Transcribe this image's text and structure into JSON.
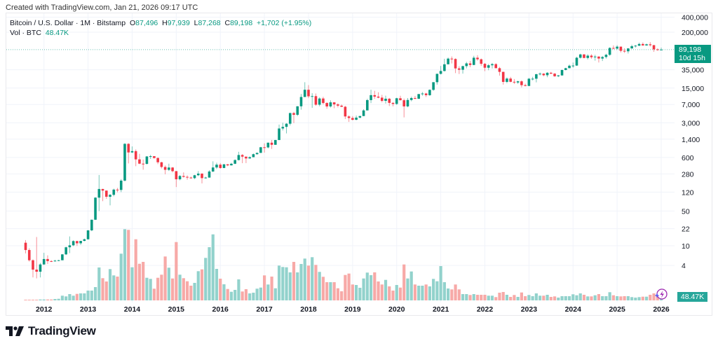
{
  "header": {
    "created": "Created with TradingView.com, Jan 21, 2026 09:17 UTC"
  },
  "legend": {
    "symbol": "Bitcoin / U.S. Dollar · 1M · Bitstamp",
    "o_label": "O",
    "o": "87,496",
    "h_label": "H",
    "h": "97,939",
    "l_label": "L",
    "l": "87,268",
    "c_label": "C",
    "c": "89,198",
    "change": "+1,702 (+1.95%)",
    "vol_label": "Vol · BTC",
    "vol": "48.47K"
  },
  "price_label": {
    "price": "89,198",
    "countdown": "10d 15h"
  },
  "volume_label": "48.47K",
  "footer": {
    "brand": "TradingView"
  },
  "colors": {
    "up": "#089981",
    "down": "#f23645",
    "vol_up": "#92d2cc",
    "vol_down": "#f7a9a7",
    "last_price_line": "#089981",
    "alert_icon": "#9c27b0"
  },
  "icons": [
    "tradingview-logo-icon",
    "lightning-alert-icon"
  ],
  "chart_data": {
    "type": "candlestick",
    "title": "Bitcoin / U.S. Dollar · 1M · Bitstamp",
    "y_scale": "log",
    "ylim": [
      2,
      420000
    ],
    "y_ticks": [
      400000,
      200000,
      35000,
      15000,
      7000,
      3000,
      1400,
      600,
      280,
      120,
      50,
      22,
      10,
      4
    ],
    "y_tick_labels": [
      "400,000",
      "200,000",
      "35,000",
      "15,000",
      "7,000",
      "3,000",
      "1,400",
      "600",
      "280",
      "120",
      "50",
      "22",
      "10",
      "4"
    ],
    "x_ticks": [
      "2012",
      "2013",
      "2014",
      "2015",
      "2016",
      "2017",
      "2018",
      "2019",
      "2020",
      "2021",
      "2022",
      "2023",
      "2024",
      "2025",
      "2026"
    ],
    "grid": true,
    "last_price": 89198,
    "volume_unit": "K BTC",
    "candles_fields": [
      "month",
      "open",
      "high",
      "low",
      "close",
      "volume_k"
    ],
    "candles": [
      [
        "2011-08",
        11.5,
        13,
        7,
        8.2,
        7
      ],
      [
        "2011-09",
        8.2,
        8.9,
        4.8,
        5.1,
        7
      ],
      [
        "2011-10",
        5.1,
        5.3,
        2.3,
        3.3,
        7
      ],
      [
        "2011-11",
        3.3,
        15,
        2.2,
        3.0,
        7
      ],
      [
        "2011-12",
        3.0,
        4.5,
        2.3,
        4.2,
        13
      ],
      [
        "2012-01",
        4.2,
        7.2,
        4.1,
        5.4,
        13
      ],
      [
        "2012-02",
        5.4,
        6.4,
        4.3,
        4.9,
        13
      ],
      [
        "2012-03",
        4.9,
        5.1,
        4.7,
        4.85,
        13
      ],
      [
        "2012-04",
        4.85,
        5.2,
        4.8,
        5.0,
        20
      ],
      [
        "2012-05",
        5.0,
        5.2,
        4.9,
        5.1,
        23
      ],
      [
        "2012-06",
        5.1,
        6.8,
        5.1,
        6.7,
        67
      ],
      [
        "2012-07",
        6.7,
        9.6,
        6.5,
        9.3,
        57
      ],
      [
        "2012-08",
        9.3,
        15.4,
        7.1,
        10.2,
        90
      ],
      [
        "2012-09",
        10.2,
        12.9,
        9.8,
        12.4,
        67
      ],
      [
        "2012-10",
        12.4,
        12.6,
        9.9,
        11.2,
        93
      ],
      [
        "2012-11",
        11.2,
        12.5,
        10.4,
        12.5,
        100
      ],
      [
        "2012-12",
        12.5,
        13.9,
        12.3,
        13.5,
        100
      ],
      [
        "2013-01",
        13.5,
        20.6,
        13.3,
        20.4,
        140
      ],
      [
        "2013-02",
        20.4,
        33.6,
        19.6,
        33.4,
        140
      ],
      [
        "2013-03",
        33.4,
        95,
        33.1,
        93,
        190
      ],
      [
        "2013-04",
        93,
        266,
        50,
        139,
        470
      ],
      [
        "2013-05",
        139,
        140,
        79,
        129,
        317
      ],
      [
        "2013-06",
        129,
        130,
        88,
        97,
        270
      ],
      [
        "2013-07",
        97,
        110,
        65,
        106,
        447
      ],
      [
        "2013-08",
        106,
        141,
        99,
        135,
        357
      ],
      [
        "2013-09",
        135,
        146,
        119,
        133,
        340
      ],
      [
        "2013-10",
        133,
        220,
        120,
        205,
        667
      ],
      [
        "2013-11",
        205,
        1163,
        197,
        1128,
        1017
      ],
      [
        "2013-12",
        1128,
        1163,
        455,
        757,
        1007
      ],
      [
        "2014-01",
        757,
        1000,
        740,
        805,
        473
      ],
      [
        "2014-02",
        805,
        870,
        400,
        549,
        873
      ],
      [
        "2014-03",
        549,
        710,
        440,
        450,
        523
      ],
      [
        "2014-04",
        450,
        545,
        340,
        446,
        550
      ],
      [
        "2014-05",
        446,
        640,
        432,
        628,
        323
      ],
      [
        "2014-06",
        628,
        677,
        560,
        637,
        307
      ],
      [
        "2014-07",
        637,
        640,
        570,
        585,
        167
      ],
      [
        "2014-08",
        585,
        600,
        440,
        480,
        323
      ],
      [
        "2014-09",
        480,
        490,
        360,
        386,
        367
      ],
      [
        "2014-10",
        386,
        415,
        275,
        338,
        627
      ],
      [
        "2014-11",
        338,
        450,
        320,
        376,
        467
      ],
      [
        "2014-12",
        376,
        385,
        300,
        318,
        313
      ],
      [
        "2015-01",
        318,
        320,
        152,
        218,
        833
      ],
      [
        "2015-02",
        218,
        265,
        208,
        254,
        367
      ],
      [
        "2015-03",
        254,
        300,
        236,
        244,
        317
      ],
      [
        "2015-04",
        244,
        261,
        214,
        236,
        273
      ],
      [
        "2015-05",
        236,
        247,
        226,
        230,
        210
      ],
      [
        "2015-06",
        230,
        268,
        220,
        263,
        250
      ],
      [
        "2015-07",
        263,
        318,
        252,
        284,
        417
      ],
      [
        "2015-08",
        284,
        286,
        180,
        230,
        443
      ],
      [
        "2015-09",
        230,
        245,
        225,
        236,
        607
      ],
      [
        "2015-10",
        236,
        331,
        235,
        313,
        760
      ],
      [
        "2015-11",
        313,
        502,
        304,
        377,
        943
      ],
      [
        "2015-12",
        377,
        470,
        350,
        430,
        450
      ],
      [
        "2016-01",
        430,
        463,
        355,
        368,
        310
      ],
      [
        "2016-02",
        368,
        445,
        365,
        436,
        230
      ],
      [
        "2016-03",
        436,
        443,
        400,
        416,
        163
      ],
      [
        "2016-04",
        416,
        469,
        412,
        448,
        123
      ],
      [
        "2016-05",
        448,
        550,
        440,
        532,
        150
      ],
      [
        "2016-06",
        532,
        780,
        523,
        672,
        300
      ],
      [
        "2016-07",
        672,
        703,
        460,
        623,
        127
      ],
      [
        "2016-08",
        623,
        626,
        462,
        573,
        160
      ],
      [
        "2016-09",
        573,
        630,
        565,
        608,
        100
      ],
      [
        "2016-10",
        608,
        720,
        606,
        698,
        110
      ],
      [
        "2016-11",
        698,
        755,
        683,
        742,
        167
      ],
      [
        "2016-12",
        742,
        980,
        740,
        963,
        183
      ],
      [
        "2017-01",
        963,
        1153,
        750,
        955,
        357
      ],
      [
        "2017-02",
        955,
        1200,
        915,
        1190,
        227
      ],
      [
        "2017-03",
        1190,
        1350,
        890,
        1080,
        340
      ],
      [
        "2017-04",
        1080,
        1350,
        1075,
        1348,
        173
      ],
      [
        "2017-05",
        1348,
        2760,
        1340,
        2300,
        497
      ],
      [
        "2017-06",
        2300,
        3000,
        2100,
        2480,
        477
      ],
      [
        "2017-07",
        2480,
        2950,
        1830,
        2870,
        473
      ],
      [
        "2017-08",
        2870,
        4800,
        2650,
        4700,
        400
      ],
      [
        "2017-09",
        4700,
        4980,
        2950,
        4340,
        550
      ],
      [
        "2017-10",
        4340,
        6450,
        4100,
        6440,
        400
      ],
      [
        "2017-11",
        6440,
        11400,
        5500,
        9920,
        520
      ],
      [
        "2017-12",
        9920,
        19666,
        9900,
        13860,
        597
      ],
      [
        "2018-01",
        13860,
        17200,
        9400,
        10220,
        497
      ],
      [
        "2018-02",
        10220,
        11800,
        6000,
        10320,
        617
      ],
      [
        "2018-03",
        10320,
        11650,
        6600,
        6930,
        507
      ],
      [
        "2018-04",
        6930,
        9750,
        6430,
        9240,
        407
      ],
      [
        "2018-05",
        9240,
        9990,
        7040,
        7500,
        337
      ],
      [
        "2018-06",
        7500,
        7760,
        5750,
        6390,
        260
      ],
      [
        "2018-07",
        6390,
        8500,
        6070,
        7730,
        260
      ],
      [
        "2018-08",
        7730,
        7760,
        5880,
        7030,
        260
      ],
      [
        "2018-09",
        7030,
        7410,
        6120,
        6630,
        173
      ],
      [
        "2018-10",
        6630,
        7000,
        6200,
        6300,
        130
      ],
      [
        "2018-11",
        6300,
        6560,
        3560,
        4020,
        363
      ],
      [
        "2018-12",
        4020,
        4230,
        3120,
        3740,
        383
      ],
      [
        "2019-01",
        3740,
        4090,
        3350,
        3440,
        227
      ],
      [
        "2019-02",
        3440,
        4200,
        3380,
        3810,
        220
      ],
      [
        "2019-03",
        3810,
        4110,
        3670,
        4100,
        180
      ],
      [
        "2019-04",
        4100,
        5620,
        4070,
        5320,
        313
      ],
      [
        "2019-05",
        5320,
        9100,
        5330,
        8580,
        397
      ],
      [
        "2019-06",
        8580,
        13880,
        7480,
        10800,
        360
      ],
      [
        "2019-07",
        10800,
        13200,
        9100,
        10090,
        400
      ],
      [
        "2019-08",
        10090,
        12330,
        9340,
        9620,
        270
      ],
      [
        "2019-09",
        9620,
        10950,
        7730,
        8290,
        227
      ],
      [
        "2019-10",
        8290,
        10540,
        7300,
        9150,
        293
      ],
      [
        "2019-11",
        9150,
        9510,
        6520,
        7550,
        200
      ],
      [
        "2019-12",
        7550,
        7750,
        6410,
        7190,
        140
      ],
      [
        "2020-01",
        7190,
        9570,
        6860,
        9350,
        220
      ],
      [
        "2020-02",
        9350,
        10500,
        8460,
        8530,
        183
      ],
      [
        "2020-03",
        8530,
        9190,
        3850,
        6410,
        513
      ],
      [
        "2020-04",
        6410,
        9450,
        6150,
        8630,
        313
      ],
      [
        "2020-05",
        8630,
        10070,
        8110,
        9450,
        413
      ],
      [
        "2020-06",
        9450,
        10380,
        8910,
        9140,
        227
      ],
      [
        "2020-07",
        9140,
        11420,
        8990,
        11350,
        210
      ],
      [
        "2020-08",
        11350,
        12470,
        10540,
        11650,
        210
      ],
      [
        "2020-09",
        11650,
        12060,
        9880,
        10780,
        227
      ],
      [
        "2020-10",
        10780,
        14100,
        10430,
        13800,
        200
      ],
      [
        "2020-11",
        13800,
        19500,
        13200,
        19700,
        307
      ],
      [
        "2020-12",
        19700,
        29300,
        17600,
        28990,
        273
      ],
      [
        "2021-01",
        28990,
        41950,
        28130,
        33110,
        490
      ],
      [
        "2021-02",
        33110,
        58350,
        32300,
        45160,
        260
      ],
      [
        "2021-03",
        45160,
        61780,
        44950,
        58790,
        170
      ],
      [
        "2021-04",
        58790,
        64900,
        47000,
        57720,
        157
      ],
      [
        "2021-05",
        57720,
        59600,
        30000,
        37300,
        227
      ],
      [
        "2021-06",
        37300,
        41300,
        28800,
        35050,
        157
      ],
      [
        "2021-07",
        35050,
        42300,
        29300,
        41500,
        90
      ],
      [
        "2021-08",
        41500,
        50500,
        37300,
        47100,
        90
      ],
      [
        "2021-09",
        47100,
        52900,
        39600,
        43800,
        77
      ],
      [
        "2021-10",
        43800,
        67000,
        43300,
        61300,
        90
      ],
      [
        "2021-11",
        61300,
        69000,
        53250,
        57000,
        80
      ],
      [
        "2021-12",
        57000,
        59100,
        42000,
        46200,
        80
      ],
      [
        "2022-01",
        46200,
        47950,
        32900,
        38500,
        80
      ],
      [
        "2022-02",
        38500,
        45800,
        34300,
        43200,
        67
      ],
      [
        "2022-03",
        43200,
        48200,
        37200,
        45500,
        67
      ],
      [
        "2022-04",
        45500,
        47400,
        37600,
        37700,
        47
      ],
      [
        "2022-05",
        37700,
        40000,
        26700,
        31800,
        110
      ],
      [
        "2022-06",
        31800,
        31900,
        17600,
        19950,
        120
      ],
      [
        "2022-07",
        19950,
        24650,
        18800,
        23300,
        80
      ],
      [
        "2022-08",
        23300,
        25200,
        19600,
        20050,
        50
      ],
      [
        "2022-09",
        20050,
        22800,
        18150,
        19420,
        77
      ],
      [
        "2022-10",
        19420,
        21080,
        18180,
        20500,
        50
      ],
      [
        "2022-11",
        20500,
        21450,
        15480,
        17160,
        113
      ],
      [
        "2022-12",
        17160,
        18400,
        16250,
        16540,
        60
      ],
      [
        "2023-01",
        16540,
        23950,
        16500,
        23130,
        77
      ],
      [
        "2023-02",
        23130,
        25250,
        21400,
        23150,
        60
      ],
      [
        "2023-03",
        23150,
        29200,
        19550,
        28470,
        100
      ],
      [
        "2023-04",
        28470,
        31000,
        26940,
        29250,
        67
      ],
      [
        "2023-05",
        29250,
        29840,
        25860,
        27210,
        67
      ],
      [
        "2023-06",
        27210,
        31440,
        24800,
        30470,
        80
      ],
      [
        "2023-07",
        30470,
        31800,
        28860,
        29230,
        50
      ],
      [
        "2023-08",
        29230,
        30200,
        25170,
        25940,
        57
      ],
      [
        "2023-09",
        25940,
        27480,
        24900,
        26970,
        40
      ],
      [
        "2023-10",
        26970,
        35200,
        26550,
        34650,
        60
      ],
      [
        "2023-11",
        34650,
        38450,
        34100,
        37720,
        60
      ],
      [
        "2023-12",
        37720,
        44700,
        37600,
        42280,
        60
      ],
      [
        "2024-01",
        42280,
        48970,
        38550,
        42580,
        87
      ],
      [
        "2024-02",
        42580,
        64000,
        41900,
        61180,
        73
      ],
      [
        "2024-03",
        61180,
        73800,
        59000,
        71300,
        100
      ],
      [
        "2024-04",
        71300,
        72800,
        59600,
        60640,
        80
      ],
      [
        "2024-05",
        60640,
        71950,
        56500,
        67500,
        57
      ],
      [
        "2024-06",
        67500,
        72000,
        58400,
        62700,
        57
      ],
      [
        "2024-07",
        62700,
        70000,
        53500,
        64600,
        73
      ],
      [
        "2024-08",
        64600,
        65600,
        49100,
        58970,
        90
      ],
      [
        "2024-09",
        58970,
        66500,
        52600,
        63300,
        60
      ],
      [
        "2024-10",
        63300,
        73600,
        58900,
        70200,
        60
      ],
      [
        "2024-11",
        70200,
        99600,
        66800,
        96400,
        117
      ],
      [
        "2024-12",
        96400,
        108300,
        90500,
        93400,
        73
      ],
      [
        "2025-01",
        93400,
        109400,
        89200,
        102400,
        60
      ],
      [
        "2025-02",
        102400,
        102700,
        78200,
        84350,
        57
      ],
      [
        "2025-03",
        84350,
        95000,
        76600,
        82500,
        60
      ],
      [
        "2025-04",
        82500,
        95700,
        74500,
        94200,
        60
      ],
      [
        "2025-05",
        94200,
        111900,
        93400,
        104600,
        47
      ],
      [
        "2025-06",
        104600,
        110500,
        98200,
        107100,
        40
      ],
      [
        "2025-07",
        107100,
        123200,
        105300,
        115750,
        47
      ],
      [
        "2025-08",
        115750,
        124500,
        107300,
        108250,
        53
      ],
      [
        "2025-09",
        108250,
        117900,
        107300,
        114050,
        53
      ],
      [
        "2025-10",
        114050,
        126200,
        103000,
        109600,
        80
      ],
      [
        "2025-11",
        109600,
        111200,
        80600,
        90400,
        100
      ],
      [
        "2025-12",
        90400,
        94600,
        84400,
        87496,
        67
      ],
      [
        "2026-01",
        87496,
        97939,
        87268,
        89198,
        48.47
      ]
    ]
  }
}
